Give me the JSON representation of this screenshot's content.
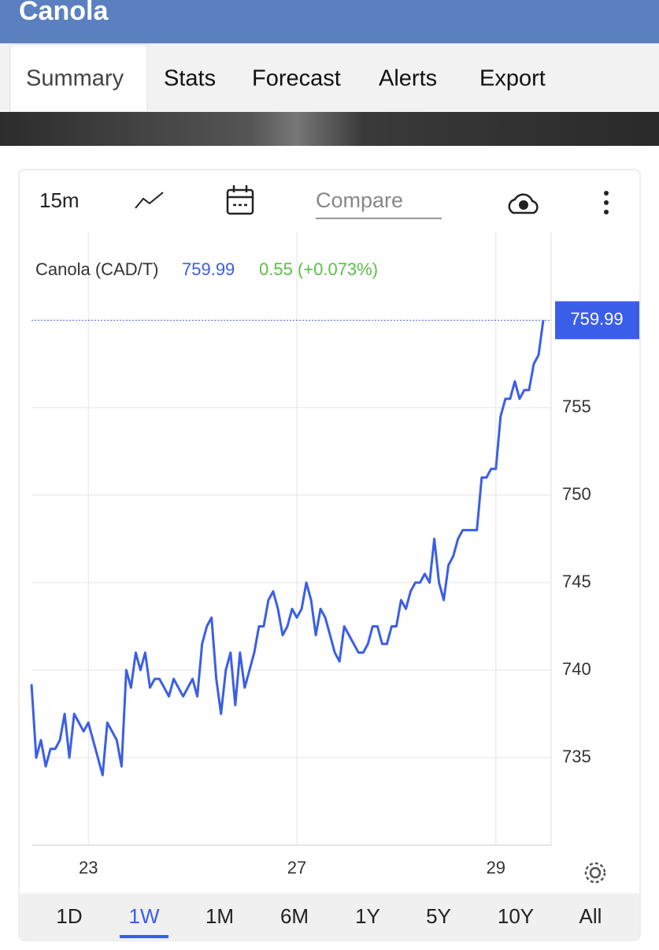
{
  "header": {
    "title": "Canola"
  },
  "tabs": [
    "Summary",
    "Stats",
    "Forecast",
    "Alerts",
    "Export"
  ],
  "active_tab": "Summary",
  "toolbar": {
    "interval": "15m",
    "compare": "Compare"
  },
  "quote": {
    "change": "0.55 (+0.073%)"
  },
  "ranges": [
    "1D",
    "1W",
    "1M",
    "6M",
    "1Y",
    "5Y",
    "10Y",
    "All"
  ],
  "active_range": "1W",
  "chart_data": {
    "type": "line",
    "categories": [
      null,
      null,
      null,
      null,
      null,
      null,
      null,
      null,
      null,
      null,
      null,
      null,
      "23",
      null,
      null,
      null,
      null,
      null,
      null,
      null,
      null,
      null,
      null,
      null,
      null,
      null,
      null,
      null,
      null,
      null,
      null,
      null,
      null,
      null,
      null,
      null,
      null,
      null,
      null,
      null,
      null,
      null,
      null,
      null,
      null,
      null,
      null,
      null,
      null,
      null,
      null,
      null,
      null,
      null,
      null,
      null,
      "27",
      null,
      null,
      null,
      null,
      null,
      null,
      null,
      null,
      null,
      null,
      null,
      null,
      null,
      null,
      null,
      null,
      null,
      null,
      null,
      null,
      null,
      null,
      null,
      null,
      null,
      null,
      null,
      null,
      null,
      null,
      null,
      null,
      null,
      null,
      null,
      null,
      null,
      null,
      null,
      null,
      null,
      "29",
      null,
      null,
      null,
      null,
      null,
      null,
      null,
      null,
      null,
      null
    ],
    "series": [
      {
        "name": "Canola (CAD/T)",
        "color": "#3b5ee8",
        "values": [
          739.2,
          735,
          736,
          734.5,
          735.5,
          735.5,
          736,
          737.5,
          735,
          737.5,
          737,
          736.5,
          737,
          736,
          735,
          734,
          737,
          736.5,
          736,
          734.5,
          740,
          739,
          741,
          740,
          741,
          739,
          739.5,
          739.5,
          739,
          738.5,
          739.5,
          739,
          738.5,
          739,
          739.5,
          738.5,
          741.5,
          742.5,
          743,
          739.5,
          737.5,
          740,
          741,
          738,
          741,
          739,
          740,
          741,
          742.5,
          742.5,
          744,
          744.5,
          743.5,
          742,
          742.5,
          743.5,
          743,
          743.5,
          745,
          744,
          742,
          743.5,
          743,
          742,
          741,
          740.5,
          742.5,
          742,
          741.5,
          741,
          741,
          741.5,
          742.5,
          742.5,
          741.5,
          741.5,
          742.5,
          742.5,
          744,
          743.5,
          744.5,
          745,
          745,
          745.5,
          745,
          747.5,
          745,
          744,
          746,
          746.5,
          747.5,
          748,
          748,
          748,
          748,
          751,
          751,
          751.5,
          751.5,
          754.5,
          755.5,
          755.5,
          756.5,
          755.5,
          756,
          756,
          757.5,
          758,
          759.99
        ]
      }
    ],
    "ylim": [
      730,
      765
    ],
    "yticks": [
      735,
      740,
      745,
      750,
      755
    ],
    "grid": true
  }
}
